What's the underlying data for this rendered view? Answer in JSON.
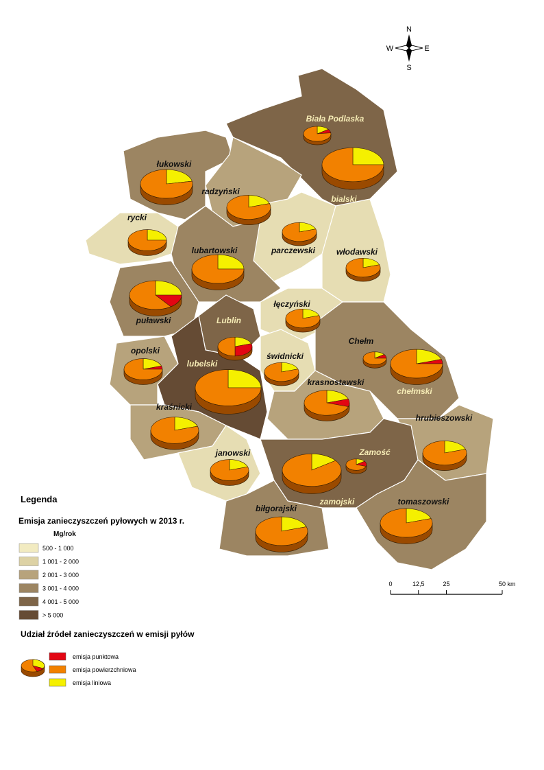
{
  "compass": {
    "n": "N",
    "s": "S",
    "w": "W",
    "e": "E"
  },
  "districts": [
    {
      "name": "Biała Podlaska",
      "color": "#7e6548",
      "label_color": "#f5ebb5",
      "shares": [
        8,
        77,
        15
      ]
    },
    {
      "name": "bialski",
      "color": "#7e6548",
      "label_color": "#f5ebb5",
      "shares": [
        0,
        75,
        25
      ]
    },
    {
      "name": "łukowski",
      "color": "#9c8562",
      "label_color": "#111111",
      "shares": [
        0,
        78,
        22
      ]
    },
    {
      "name": "radzyński",
      "color": "#b7a37c",
      "label_color": "#111111",
      "shares": [
        0,
        80,
        20
      ]
    },
    {
      "name": "rycki",
      "color": "#e6ddb3",
      "label_color": "#111111",
      "shares": [
        0,
        75,
        25
      ]
    },
    {
      "name": "parczewski",
      "color": "#e6ddb3",
      "label_color": "#111111",
      "shares": [
        0,
        80,
        20
      ]
    },
    {
      "name": "lubartowski",
      "color": "#9c8562",
      "label_color": "#111111",
      "shares": [
        0,
        75,
        25
      ]
    },
    {
      "name": "włodawski",
      "color": "#e6ddb3",
      "label_color": "#111111",
      "shares": [
        0,
        80,
        20
      ]
    },
    {
      "name": "puławski",
      "color": "#9c8562",
      "label_color": "#111111",
      "shares": [
        15,
        60,
        25
      ]
    },
    {
      "name": "łęczyński",
      "color": "#e6ddb3",
      "label_color": "#111111",
      "shares": [
        0,
        80,
        20
      ]
    },
    {
      "name": "Lublin",
      "color": "#7e6548",
      "label_color": "#f5ebb5",
      "shares": [
        30,
        50,
        20
      ]
    },
    {
      "name": "opolski",
      "color": "#b7a37c",
      "label_color": "#111111",
      "shares": [
        5,
        75,
        20
      ]
    },
    {
      "name": "lubelski",
      "color": "#654b34",
      "label_color": "#f5ebb5",
      "shares": [
        0,
        75,
        25
      ]
    },
    {
      "name": "świdnicki",
      "color": "#e6ddb3",
      "label_color": "#111111",
      "shares": [
        0,
        80,
        20
      ]
    },
    {
      "name": "Chełm",
      "color": "#9c8562",
      "label_color": "#111111",
      "shares": [
        10,
        75,
        15
      ]
    },
    {
      "name": "chełmski",
      "color": "#9c8562",
      "label_color": "#f5ebb5",
      "shares": [
        5,
        75,
        20
      ]
    },
    {
      "name": "krasnostawski",
      "color": "#b7a37c",
      "label_color": "#111111",
      "shares": [
        10,
        70,
        20
      ]
    },
    {
      "name": "kraśnicki",
      "color": "#b7a37c",
      "label_color": "#111111",
      "shares": [
        0,
        80,
        20
      ]
    },
    {
      "name": "hrubieszowski",
      "color": "#b7a37c",
      "label_color": "#111111",
      "shares": [
        0,
        80,
        20
      ]
    },
    {
      "name": "janowski",
      "color": "#e6ddb3",
      "label_color": "#111111",
      "shares": [
        0,
        80,
        20
      ]
    },
    {
      "name": "Zamość",
      "color": "#7e6548",
      "label_color": "#f5ebb5",
      "shares": [
        15,
        70,
        15
      ]
    },
    {
      "name": "zamojski",
      "color": "#7e6548",
      "label_color": "#f5ebb5",
      "shares": [
        0,
        85,
        15
      ]
    },
    {
      "name": "biłgorajski",
      "color": "#9c8562",
      "label_color": "#111111",
      "shares": [
        0,
        80,
        20
      ]
    },
    {
      "name": "tomaszowski",
      "color": "#9c8562",
      "label_color": "#111111",
      "shares": [
        0,
        80,
        20
      ]
    }
  ],
  "legend": {
    "title": "Legenda",
    "classes_title": "Emisja zanieczyszczeń pyłowych w 2013 r.",
    "unit": "Mg/rok",
    "classes": [
      {
        "label": "500 - 1 000",
        "color": "#f2ebc1"
      },
      {
        "label": "1 001 - 2 000",
        "color": "#ddd2a5"
      },
      {
        "label": "2 001 - 3 000",
        "color": "#b7a37c"
      },
      {
        "label": "3 001 - 4 000",
        "color": "#9c8562"
      },
      {
        "label": "4 001 - 5 000",
        "color": "#7e6548"
      },
      {
        "label": "> 5 000",
        "color": "#654b34"
      }
    ],
    "sources_title": "Udział źródeł zanieczyszczeń w emisji pyłów",
    "sources": [
      {
        "label": "emisja punktowa",
        "color": "#e30613"
      },
      {
        "label": "emisja powierzchniowa",
        "color": "#f28100"
      },
      {
        "label": "emisja liniowa",
        "color": "#f5f000"
      }
    ]
  },
  "scale": {
    "ticks": [
      0,
      {
        "value": 12.5,
        "label": "12,5"
      },
      25,
      {
        "value": 50,
        "label": "50 km"
      }
    ]
  }
}
